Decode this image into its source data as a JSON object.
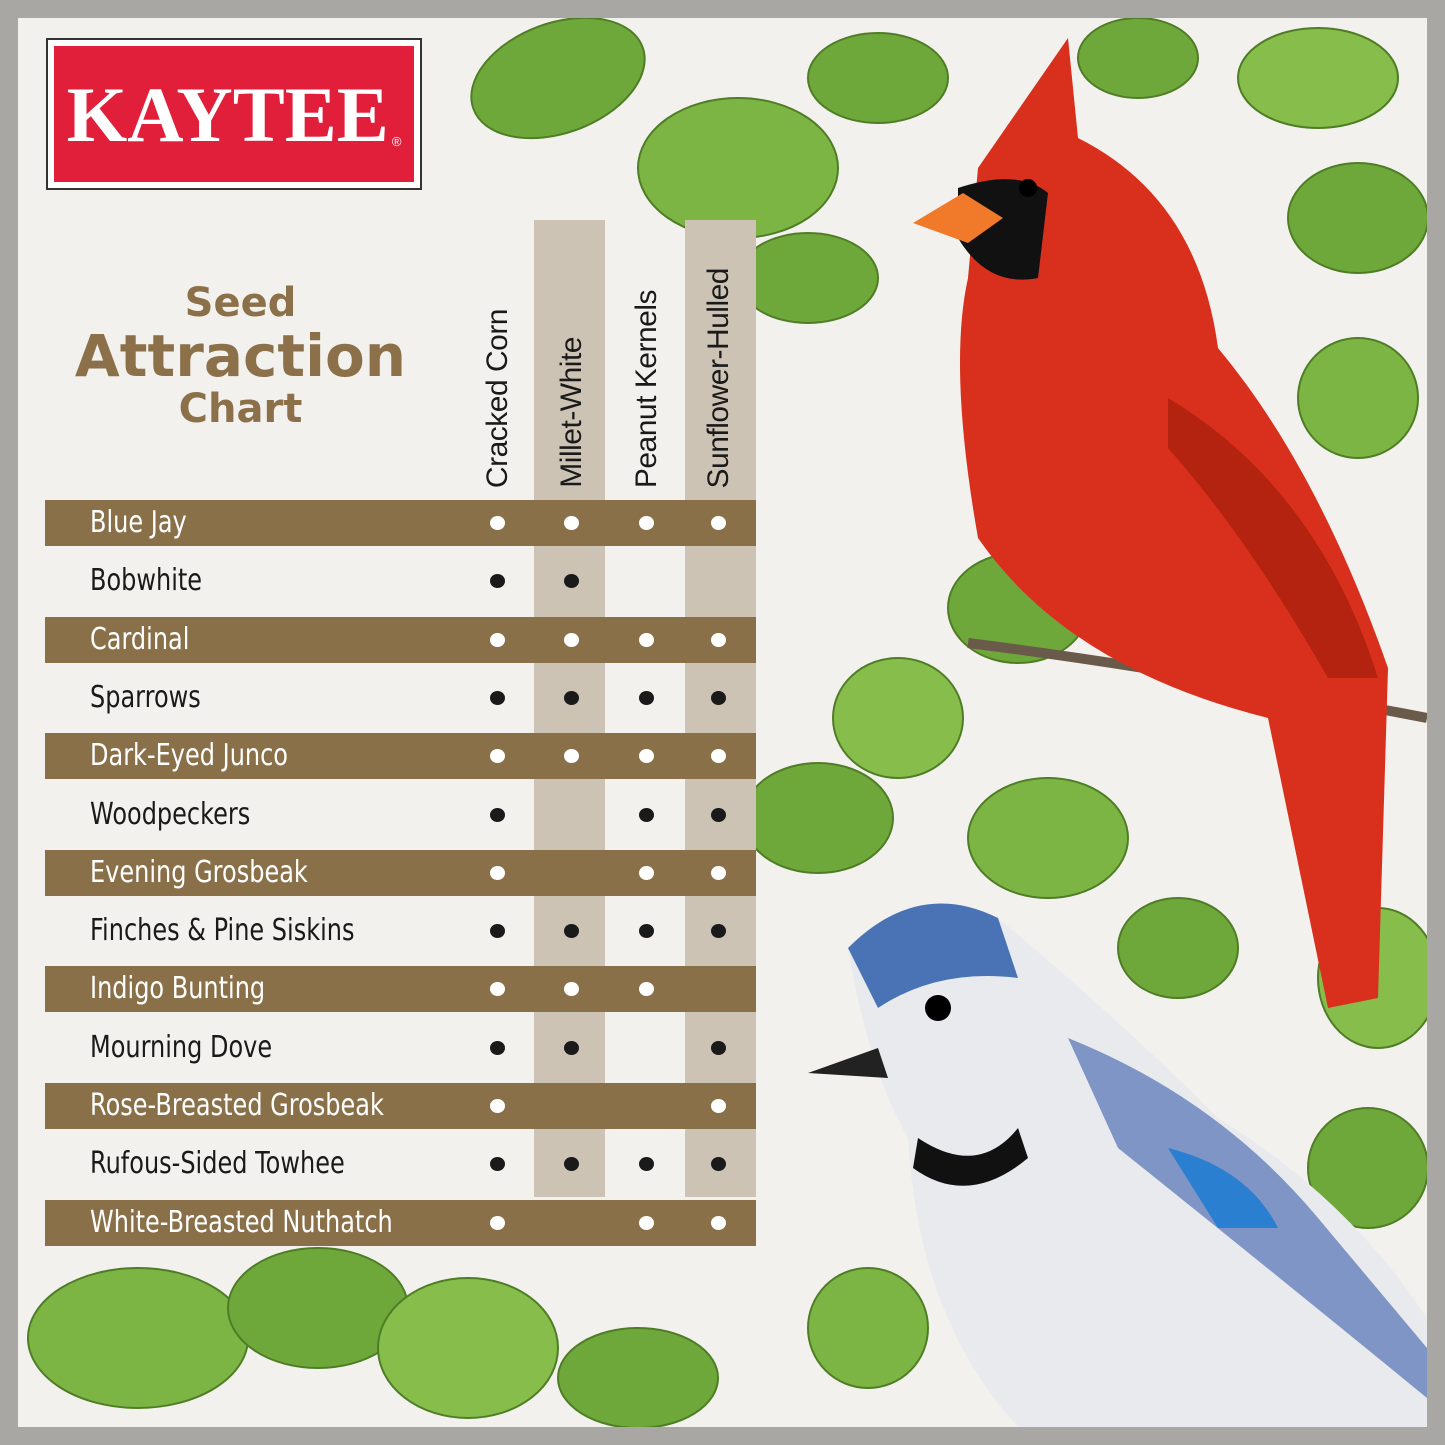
{
  "brand": {
    "name": "KAYTEE",
    "registered": "®",
    "color": "#e11f3b"
  },
  "title": {
    "line1": "Seed",
    "line2": "Attraction",
    "line3": "Chart"
  },
  "chart_data": {
    "type": "table",
    "columns": [
      "Cracked Corn",
      "Millet-White",
      "Peanut Kernels",
      "Sunflower-Hulled"
    ],
    "rows": [
      {
        "bird": "Blue Jay",
        "seeds": [
          1,
          1,
          1,
          1
        ]
      },
      {
        "bird": "Bobwhite",
        "seeds": [
          1,
          1,
          0,
          0
        ]
      },
      {
        "bird": "Cardinal",
        "seeds": [
          1,
          1,
          1,
          1
        ]
      },
      {
        "bird": "Sparrows",
        "seeds": [
          1,
          1,
          1,
          1
        ]
      },
      {
        "bird": "Dark-Eyed Junco",
        "seeds": [
          1,
          1,
          1,
          1
        ]
      },
      {
        "bird": "Woodpeckers",
        "seeds": [
          1,
          0,
          1,
          1
        ]
      },
      {
        "bird": "Evening Grosbeak",
        "seeds": [
          1,
          0,
          1,
          1
        ]
      },
      {
        "bird": "Finches & Pine Siskins",
        "seeds": [
          1,
          1,
          1,
          1
        ]
      },
      {
        "bird": "Indigo Bunting",
        "seeds": [
          1,
          1,
          1,
          0
        ]
      },
      {
        "bird": "Mourning Dove",
        "seeds": [
          1,
          1,
          0,
          1
        ]
      },
      {
        "bird": "Rose-Breasted Grosbeak",
        "seeds": [
          1,
          0,
          0,
          1
        ]
      },
      {
        "bird": "Rufous-Sided Towhee",
        "seeds": [
          1,
          1,
          1,
          1
        ]
      },
      {
        "bird": "White-Breasted Nuthatch",
        "seeds": [
          1,
          0,
          1,
          1
        ]
      }
    ],
    "colors": {
      "row_stripe": "#8a7049",
      "column_band": "#cdc3b5",
      "title": "#8b7049"
    }
  }
}
